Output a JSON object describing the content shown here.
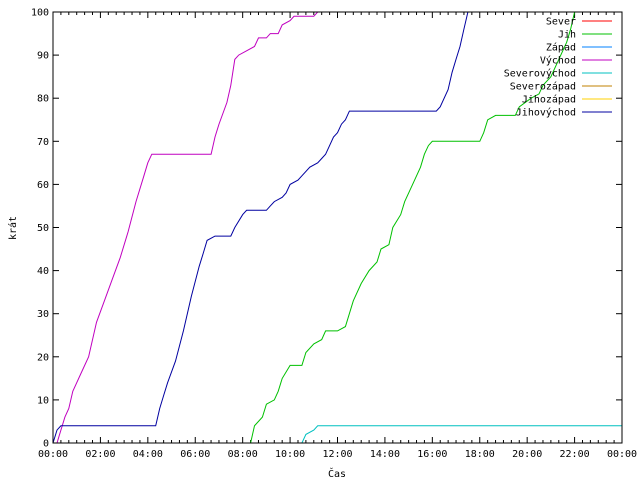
{
  "chart_data": {
    "type": "line",
    "title": "",
    "xlabel": "Čas",
    "ylabel": "krát",
    "xlim": [
      "00:00",
      "00:00"
    ],
    "ylim": [
      0,
      100
    ],
    "x_ticks": [
      "00:00",
      "02:00",
      "04:00",
      "06:00",
      "08:00",
      "10:00",
      "12:00",
      "14:00",
      "16:00",
      "18:00",
      "20:00",
      "22:00",
      "00:00"
    ],
    "y_ticks": [
      0,
      10,
      20,
      30,
      40,
      50,
      60,
      70,
      80,
      90,
      100
    ],
    "legend_position": "top-right",
    "grid": false,
    "series": [
      {
        "name": "Sever",
        "color": "#ff0000",
        "points": []
      },
      {
        "name": "Jih",
        "color": "#00c000",
        "points": [
          [
            "08:20",
            0
          ],
          [
            "08:30",
            4
          ],
          [
            "08:50",
            6
          ],
          [
            "09:00",
            9
          ],
          [
            "09:20",
            10
          ],
          [
            "09:30",
            12
          ],
          [
            "09:40",
            15
          ],
          [
            "10:00",
            18
          ],
          [
            "10:30",
            18
          ],
          [
            "10:40",
            21
          ],
          [
            "11:00",
            23
          ],
          [
            "11:20",
            24
          ],
          [
            "11:30",
            26
          ],
          [
            "12:00",
            26
          ],
          [
            "12:20",
            27
          ],
          [
            "12:40",
            33
          ],
          [
            "13:00",
            37
          ],
          [
            "13:20",
            40
          ],
          [
            "13:40",
            42
          ],
          [
            "13:50",
            45
          ],
          [
            "14:10",
            46
          ],
          [
            "14:20",
            50
          ],
          [
            "14:40",
            53
          ],
          [
            "14:50",
            56
          ],
          [
            "15:10",
            60
          ],
          [
            "15:30",
            64
          ],
          [
            "15:40",
            67
          ],
          [
            "15:50",
            69
          ],
          [
            "16:00",
            70
          ],
          [
            "18:00",
            70
          ],
          [
            "18:10",
            72
          ],
          [
            "18:20",
            75
          ],
          [
            "18:40",
            76
          ],
          [
            "19:30",
            76
          ],
          [
            "19:40",
            78
          ],
          [
            "20:10",
            80
          ],
          [
            "20:30",
            81
          ],
          [
            "20:40",
            83
          ],
          [
            "21:00",
            85
          ],
          [
            "21:20",
            89
          ],
          [
            "21:40",
            93
          ],
          [
            "21:50",
            96
          ],
          [
            "22:00",
            100
          ]
        ]
      },
      {
        "name": "Západ",
        "color": "#0080ff",
        "points": []
      },
      {
        "name": "Východ",
        "color": "#c000c0",
        "points": [
          [
            "00:00",
            0
          ],
          [
            "00:10",
            0
          ],
          [
            "00:20",
            3
          ],
          [
            "00:30",
            6
          ],
          [
            "00:40",
            8
          ],
          [
            "00:50",
            12
          ],
          [
            "01:10",
            16
          ],
          [
            "01:30",
            20
          ],
          [
            "01:50",
            28
          ],
          [
            "02:10",
            33
          ],
          [
            "02:30",
            38
          ],
          [
            "02:50",
            43
          ],
          [
            "03:10",
            49
          ],
          [
            "03:30",
            56
          ],
          [
            "03:50",
            62
          ],
          [
            "04:00",
            65
          ],
          [
            "04:10",
            67
          ],
          [
            "06:40",
            67
          ],
          [
            "06:50",
            71
          ],
          [
            "07:00",
            74
          ],
          [
            "07:20",
            79
          ],
          [
            "07:30",
            83
          ],
          [
            "07:40",
            89
          ],
          [
            "07:50",
            90
          ],
          [
            "08:10",
            91
          ],
          [
            "08:30",
            92
          ],
          [
            "08:40",
            94
          ],
          [
            "09:00",
            94
          ],
          [
            "09:10",
            95
          ],
          [
            "09:30",
            95
          ],
          [
            "09:40",
            97
          ],
          [
            "10:00",
            98
          ],
          [
            "10:10",
            99
          ],
          [
            "11:00",
            99
          ],
          [
            "11:10",
            100
          ]
        ]
      },
      {
        "name": "Severovýchod",
        "color": "#00c0c0",
        "points": [
          [
            "10:30",
            0
          ],
          [
            "10:40",
            2
          ],
          [
            "11:00",
            3
          ],
          [
            "11:10",
            4
          ],
          [
            "00:00+",
            4
          ]
        ]
      },
      {
        "name": "Severozápad",
        "color": "#c08000",
        "points": []
      },
      {
        "name": "Jihozápad",
        "color": "#ffd000",
        "points": []
      },
      {
        "name": "Jihovýchod",
        "color": "#0000a0",
        "points": [
          [
            "00:00",
            0
          ],
          [
            "00:10",
            3
          ],
          [
            "00:20",
            4
          ],
          [
            "04:20",
            4
          ],
          [
            "04:30",
            8
          ],
          [
            "04:40",
            11
          ],
          [
            "04:50",
            14
          ],
          [
            "05:10",
            19
          ],
          [
            "05:30",
            26
          ],
          [
            "05:50",
            34
          ],
          [
            "06:10",
            41
          ],
          [
            "06:20",
            44
          ],
          [
            "06:30",
            47
          ],
          [
            "06:50",
            48
          ],
          [
            "07:30",
            48
          ],
          [
            "07:40",
            50
          ],
          [
            "08:00",
            53
          ],
          [
            "08:10",
            54
          ],
          [
            "09:00",
            54
          ],
          [
            "09:10",
            55
          ],
          [
            "09:20",
            56
          ],
          [
            "09:40",
            57
          ],
          [
            "09:50",
            58
          ],
          [
            "10:00",
            60
          ],
          [
            "10:20",
            61
          ],
          [
            "10:30",
            62
          ],
          [
            "10:50",
            64
          ],
          [
            "11:10",
            65
          ],
          [
            "11:20",
            66
          ],
          [
            "11:30",
            67
          ],
          [
            "11:40",
            69
          ],
          [
            "11:50",
            71
          ],
          [
            "12:00",
            72
          ],
          [
            "12:10",
            74
          ],
          [
            "12:20",
            75
          ],
          [
            "12:30",
            77
          ],
          [
            "16:10",
            77
          ],
          [
            "16:20",
            78
          ],
          [
            "16:40",
            82
          ],
          [
            "16:50",
            86
          ],
          [
            "17:00",
            89
          ],
          [
            "17:10",
            92
          ],
          [
            "17:20",
            96
          ],
          [
            "17:30",
            100
          ]
        ]
      }
    ]
  }
}
